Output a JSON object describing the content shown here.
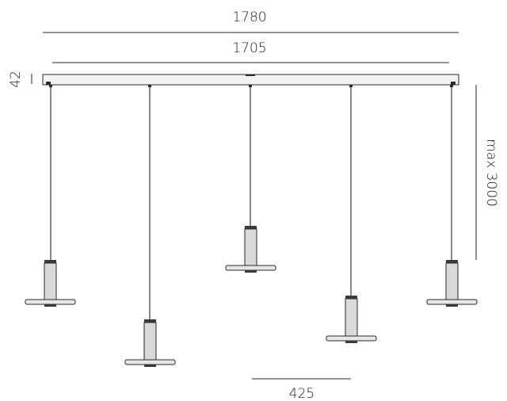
{
  "dimensions": {
    "total_length": "1780",
    "rail_length": "1705",
    "rail_height": "42",
    "max_drop": "max 3000",
    "spacing": "425"
  },
  "colors": {
    "line": "#2a2a2a",
    "rail_fill": "#f2f2f2",
    "body_fill": "#d9d9d9",
    "ring_fill": "#3a3a3a",
    "disc_fill": "#e6e6e6"
  }
}
